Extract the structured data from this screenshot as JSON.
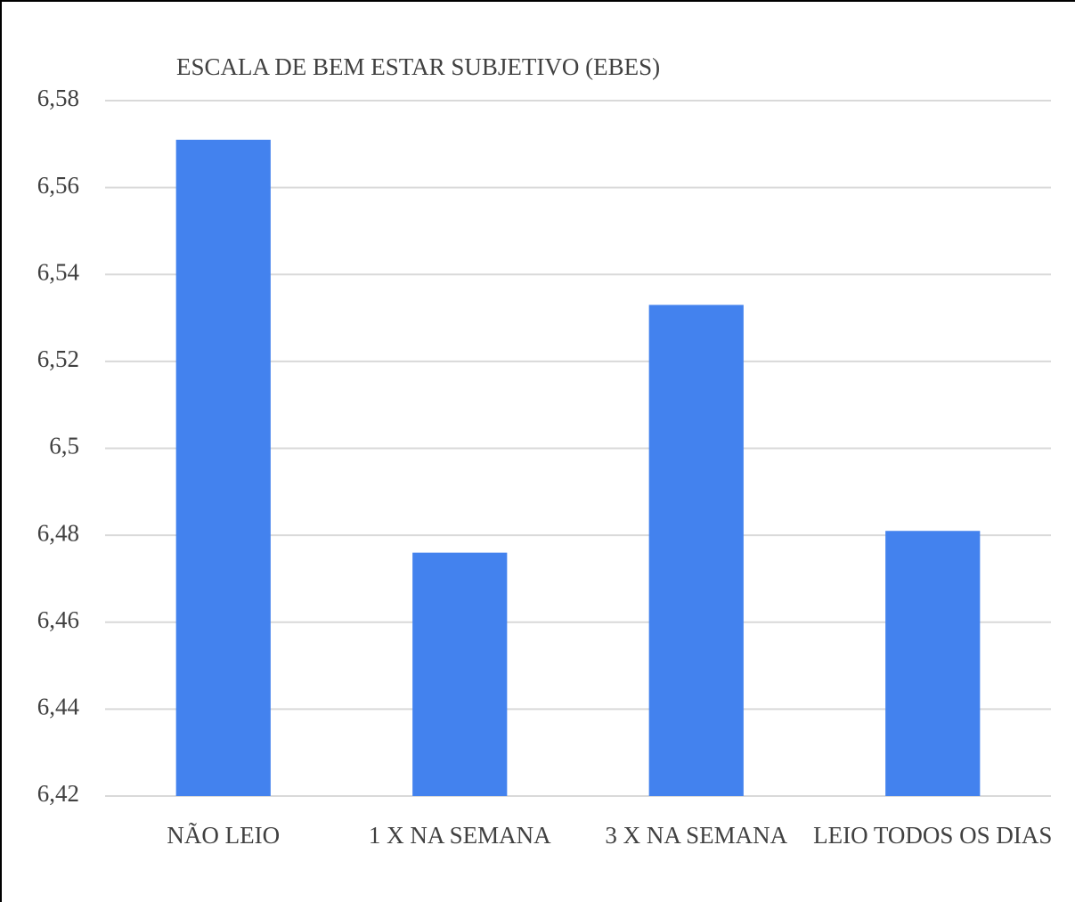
{
  "chart_data": {
    "type": "bar",
    "title": "ESCALA DE BEM ESTAR SUBJETIVO (EBES)",
    "categories": [
      "NÃO LEIO",
      "1 X NA SEMANA",
      "3 X NA SEMANA",
      "LEIO TODOS OS DIAS"
    ],
    "values": [
      6.571,
      6.476,
      6.533,
      6.481
    ],
    "color": "#4382ee",
    "ylim": [
      6.42,
      6.58
    ],
    "yticks": [
      {
        "value": 6.42,
        "label": "6,42"
      },
      {
        "value": 6.44,
        "label": "6,44"
      },
      {
        "value": 6.46,
        "label": "6,46"
      },
      {
        "value": 6.48,
        "label": "6,48"
      },
      {
        "value": 6.5,
        "label": "6,5"
      },
      {
        "value": 6.52,
        "label": "6,52"
      },
      {
        "value": 6.54,
        "label": "6,54"
      },
      {
        "value": 6.56,
        "label": "6,56"
      },
      {
        "value": 6.58,
        "label": "6,58"
      }
    ],
    "grid": true
  }
}
